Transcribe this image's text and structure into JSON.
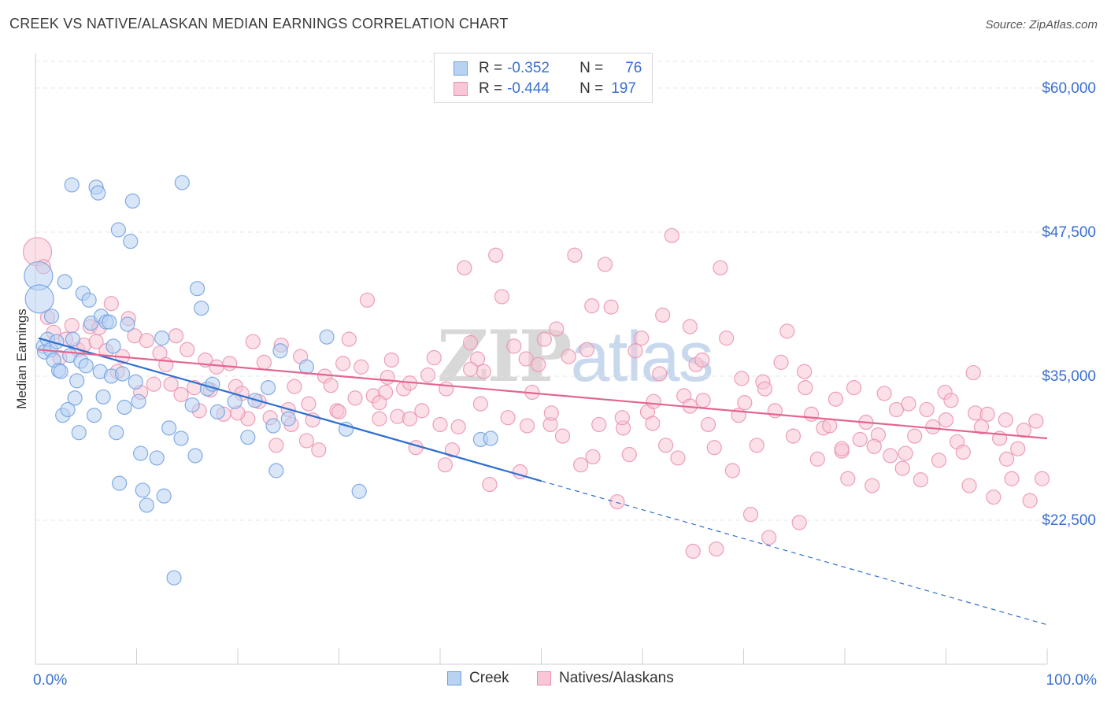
{
  "title": "CREEK VS NATIVE/ALASKAN MEDIAN EARNINGS CORRELATION CHART",
  "source": "Source: ZipAtlas.com",
  "watermark": {
    "zip": "ZIP",
    "atlas": "atlas"
  },
  "legend": {
    "items": [
      {
        "r_label": "R =",
        "r_value": "-0.352",
        "n_label": "N =",
        "n_value": "76",
        "fill": "#b8d2f2",
        "stroke": "#6f9fe0"
      },
      {
        "r_label": "R =",
        "r_value": "-0.444",
        "n_label": "N =",
        "n_value": "197",
        "fill": "#f8c6d6",
        "stroke": "#ea8fae"
      }
    ]
  },
  "chart_data": {
    "type": "scatter",
    "title": "CREEK VS NATIVE/ALASKAN MEDIAN EARNINGS CORRELATION CHART",
    "xlabel": "",
    "ylabel": "Median Earnings",
    "xlim": [
      0,
      100
    ],
    "ylim": [
      10000,
      63000
    ],
    "x_tick_labels": [
      {
        "value": 0,
        "label": "0.0%"
      },
      {
        "value": 100,
        "label": "100.0%"
      }
    ],
    "y_ticks": [
      {
        "value": 22500,
        "label": "$22,500"
      },
      {
        "value": 35000,
        "label": "$35,000"
      },
      {
        "value": 47500,
        "label": "$47,500"
      },
      {
        "value": 60000,
        "label": "$60,000"
      }
    ],
    "grid": true,
    "legend_position": "top-center",
    "series": [
      {
        "name": "Creek",
        "color": "#6f9fe0",
        "fill": "#b8d2f2",
        "line_color": "#2f6fd0",
        "trend": {
          "x0": 0.3,
          "y0": 38300,
          "x1": 50,
          "y1": 25900,
          "x_end_dashed": 100
        },
        "points": [
          [
            0.3,
            43700
          ],
          [
            0.4,
            41700
          ],
          [
            0.8,
            37600
          ],
          [
            0.9,
            37100
          ],
          [
            1.2,
            38200
          ],
          [
            1.5,
            37300
          ],
          [
            1.6,
            40200
          ],
          [
            1.8,
            36400
          ],
          [
            2.1,
            38000
          ],
          [
            2.3,
            35500
          ],
          [
            2.5,
            35400
          ],
          [
            2.7,
            31600
          ],
          [
            2.9,
            43200
          ],
          [
            3.2,
            32100
          ],
          [
            3.4,
            36800
          ],
          [
            3.6,
            51600
          ],
          [
            3.7,
            38200
          ],
          [
            3.9,
            33100
          ],
          [
            4.1,
            34600
          ],
          [
            4.3,
            30100
          ],
          [
            4.5,
            36300
          ],
          [
            4.7,
            42200
          ],
          [
            5.0,
            35900
          ],
          [
            5.3,
            41600
          ],
          [
            5.5,
            39600
          ],
          [
            5.8,
            31600
          ],
          [
            6.0,
            51400
          ],
          [
            6.2,
            50900
          ],
          [
            6.4,
            35400
          ],
          [
            6.5,
            40200
          ],
          [
            6.7,
            33200
          ],
          [
            7.0,
            39700
          ],
          [
            7.3,
            39700
          ],
          [
            7.5,
            35000
          ],
          [
            7.7,
            37600
          ],
          [
            8.0,
            30100
          ],
          [
            8.2,
            47700
          ],
          [
            8.3,
            25700
          ],
          [
            8.6,
            35200
          ],
          [
            8.8,
            32300
          ],
          [
            9.1,
            39500
          ],
          [
            9.4,
            46700
          ],
          [
            9.6,
            50200
          ],
          [
            9.9,
            34500
          ],
          [
            10.2,
            32800
          ],
          [
            10.4,
            28300
          ],
          [
            10.6,
            25100
          ],
          [
            11.0,
            23800
          ],
          [
            12.0,
            27900
          ],
          [
            12.5,
            38300
          ],
          [
            12.7,
            24600
          ],
          [
            13.2,
            30500
          ],
          [
            13.7,
            17500
          ],
          [
            14.5,
            51800
          ],
          [
            14.4,
            29600
          ],
          [
            15.5,
            32500
          ],
          [
            15.8,
            28100
          ],
          [
            16.0,
            42600
          ],
          [
            16.4,
            40900
          ],
          [
            17.0,
            33900
          ],
          [
            17.5,
            34300
          ],
          [
            18.0,
            31900
          ],
          [
            19.7,
            32800
          ],
          [
            21.0,
            29700
          ],
          [
            21.7,
            32900
          ],
          [
            23.0,
            34000
          ],
          [
            23.5,
            30700
          ],
          [
            23.8,
            26800
          ],
          [
            24.2,
            37200
          ],
          [
            25.0,
            31300
          ],
          [
            26.8,
            35800
          ],
          [
            28.8,
            38400
          ],
          [
            30.7,
            30400
          ],
          [
            32.0,
            25000
          ],
          [
            44.0,
            29500
          ],
          [
            45.0,
            29600
          ]
        ]
      },
      {
        "name": "Natives/Alaskans",
        "color": "#ea8fae",
        "fill": "#f8c6d6",
        "line_color": "#e36592",
        "trend": {
          "x0": 0.3,
          "y0": 37300,
          "x1": 100,
          "y1": 29600
        },
        "points": [
          [
            0.2,
            45800
          ],
          [
            0.8,
            44500
          ],
          [
            1.2,
            40100
          ],
          [
            1.8,
            38800
          ],
          [
            2.4,
            36600
          ],
          [
            3.0,
            38200
          ],
          [
            3.6,
            39400
          ],
          [
            4.2,
            37300
          ],
          [
            4.8,
            37700
          ],
          [
            5.4,
            39300
          ],
          [
            6.0,
            38000
          ],
          [
            6.3,
            39200
          ],
          [
            7.0,
            37200
          ],
          [
            7.5,
            41300
          ],
          [
            8.1,
            35400
          ],
          [
            8.6,
            36700
          ],
          [
            9.2,
            40000
          ],
          [
            9.8,
            38500
          ],
          [
            10.4,
            33600
          ],
          [
            11.0,
            38100
          ],
          [
            11.7,
            34300
          ],
          [
            12.3,
            37000
          ],
          [
            12.9,
            36000
          ],
          [
            13.4,
            34300
          ],
          [
            13.9,
            38500
          ],
          [
            14.4,
            33400
          ],
          [
            15.0,
            37300
          ],
          [
            15.7,
            34000
          ],
          [
            16.2,
            32000
          ],
          [
            16.8,
            36400
          ],
          [
            17.3,
            33800
          ],
          [
            17.9,
            35800
          ],
          [
            18.6,
            31700
          ],
          [
            19.2,
            36100
          ],
          [
            19.8,
            34100
          ],
          [
            20.4,
            33500
          ],
          [
            21.0,
            31300
          ],
          [
            21.5,
            38000
          ],
          [
            22.1,
            32800
          ],
          [
            22.6,
            36200
          ],
          [
            23.2,
            31400
          ],
          [
            23.8,
            29000
          ],
          [
            24.3,
            37700
          ],
          [
            25.0,
            32100
          ],
          [
            25.6,
            34100
          ],
          [
            26.2,
            36700
          ],
          [
            26.8,
            29400
          ],
          [
            27.4,
            31200
          ],
          [
            28.0,
            28600
          ],
          [
            28.6,
            35000
          ],
          [
            29.2,
            34200
          ],
          [
            29.8,
            32000
          ],
          [
            30.4,
            36100
          ],
          [
            31.0,
            38200
          ],
          [
            31.6,
            33100
          ],
          [
            32.2,
            35800
          ],
          [
            32.8,
            41600
          ],
          [
            33.4,
            33300
          ],
          [
            34.0,
            31300
          ],
          [
            34.6,
            33600
          ],
          [
            35.2,
            36400
          ],
          [
            35.8,
            31500
          ],
          [
            36.4,
            33900
          ],
          [
            37.0,
            34400
          ],
          [
            37.6,
            28800
          ],
          [
            38.2,
            32000
          ],
          [
            38.8,
            35100
          ],
          [
            39.4,
            36600
          ],
          [
            40.0,
            30800
          ],
          [
            40.6,
            33900
          ],
          [
            41.2,
            28600
          ],
          [
            41.8,
            30600
          ],
          [
            42.4,
            44400
          ],
          [
            43.0,
            37900
          ],
          [
            43.7,
            36500
          ],
          [
            44.3,
            35400
          ],
          [
            44.9,
            25600
          ],
          [
            45.5,
            45500
          ],
          [
            46.1,
            41900
          ],
          [
            46.7,
            31400
          ],
          [
            47.3,
            37600
          ],
          [
            47.9,
            26700
          ],
          [
            48.5,
            36500
          ],
          [
            49.1,
            33600
          ],
          [
            49.7,
            36000
          ],
          [
            50.3,
            38200
          ],
          [
            50.9,
            30800
          ],
          [
            51.5,
            39100
          ],
          [
            52.1,
            29800
          ],
          [
            52.7,
            36700
          ],
          [
            53.3,
            45500
          ],
          [
            53.9,
            27300
          ],
          [
            54.5,
            37300
          ],
          [
            55.1,
            28000
          ],
          [
            55.7,
            30800
          ],
          [
            56.3,
            44700
          ],
          [
            56.9,
            41000
          ],
          [
            57.5,
            24100
          ],
          [
            58.1,
            30500
          ],
          [
            58.7,
            28200
          ],
          [
            59.3,
            37200
          ],
          [
            59.9,
            38300
          ],
          [
            60.5,
            31900
          ],
          [
            61.1,
            32800
          ],
          [
            61.7,
            35200
          ],
          [
            62.3,
            29000
          ],
          [
            62.9,
            47200
          ],
          [
            63.5,
            27900
          ],
          [
            64.1,
            33300
          ],
          [
            64.7,
            39300
          ],
          [
            65.3,
            36000
          ],
          [
            65.9,
            36400
          ],
          [
            66.5,
            30800
          ],
          [
            67.1,
            28800
          ],
          [
            67.7,
            44400
          ],
          [
            68.3,
            38300
          ],
          [
            68.9,
            26800
          ],
          [
            69.5,
            31600
          ],
          [
            70.1,
            32700
          ],
          [
            70.7,
            23000
          ],
          [
            71.3,
            29000
          ],
          [
            71.9,
            34500
          ],
          [
            72.5,
            21000
          ],
          [
            73.1,
            32000
          ],
          [
            73.7,
            36200
          ],
          [
            74.3,
            38900
          ],
          [
            74.9,
            29800
          ],
          [
            75.5,
            22300
          ],
          [
            76.1,
            34000
          ],
          [
            76.7,
            31700
          ],
          [
            77.3,
            27800
          ],
          [
            77.9,
            30500
          ],
          [
            78.5,
            30700
          ],
          [
            79.1,
            33000
          ],
          [
            79.7,
            28500
          ],
          [
            80.3,
            26100
          ],
          [
            80.9,
            34000
          ],
          [
            81.5,
            29500
          ],
          [
            82.1,
            31000
          ],
          [
            82.7,
            25500
          ],
          [
            83.3,
            29900
          ],
          [
            83.9,
            33500
          ],
          [
            84.5,
            28100
          ],
          [
            85.1,
            32100
          ],
          [
            85.7,
            27000
          ],
          [
            86.3,
            32600
          ],
          [
            86.9,
            29800
          ],
          [
            87.5,
            26000
          ],
          [
            88.1,
            32100
          ],
          [
            88.7,
            30600
          ],
          [
            89.3,
            27700
          ],
          [
            89.9,
            33600
          ],
          [
            90.5,
            32900
          ],
          [
            91.1,
            29300
          ],
          [
            91.7,
            28400
          ],
          [
            92.3,
            25500
          ],
          [
            92.9,
            31800
          ],
          [
            93.5,
            30600
          ],
          [
            94.1,
            31700
          ],
          [
            94.7,
            24500
          ],
          [
            95.3,
            29600
          ],
          [
            95.9,
            31200
          ],
          [
            96.5,
            26100
          ],
          [
            97.1,
            28700
          ],
          [
            97.7,
            30300
          ],
          [
            98.3,
            24200
          ],
          [
            98.9,
            31100
          ],
          [
            99.5,
            26100
          ],
          [
            25.3,
            30800
          ],
          [
            27.0,
            32600
          ],
          [
            34.8,
            34900
          ],
          [
            37.0,
            31300
          ],
          [
            44.0,
            32600
          ],
          [
            48.6,
            30700
          ],
          [
            51.0,
            31800
          ],
          [
            58.0,
            31400
          ],
          [
            61.0,
            30900
          ],
          [
            64.7,
            32400
          ],
          [
            67.3,
            20000
          ],
          [
            69.8,
            34800
          ],
          [
            72.1,
            33900
          ],
          [
            76.0,
            35400
          ],
          [
            79.7,
            28700
          ],
          [
            82.9,
            28900
          ],
          [
            86.0,
            28300
          ],
          [
            90.0,
            31200
          ],
          [
            92.7,
            35300
          ],
          [
            96.0,
            27800
          ],
          [
            65.0,
            19800
          ],
          [
            62.0,
            40300
          ],
          [
            66.0,
            32900
          ],
          [
            55.0,
            41100
          ],
          [
            43.0,
            35600
          ],
          [
            40.5,
            27300
          ],
          [
            34.0,
            32700
          ],
          [
            30.0,
            31900
          ],
          [
            20.0,
            31800
          ]
        ]
      }
    ]
  }
}
